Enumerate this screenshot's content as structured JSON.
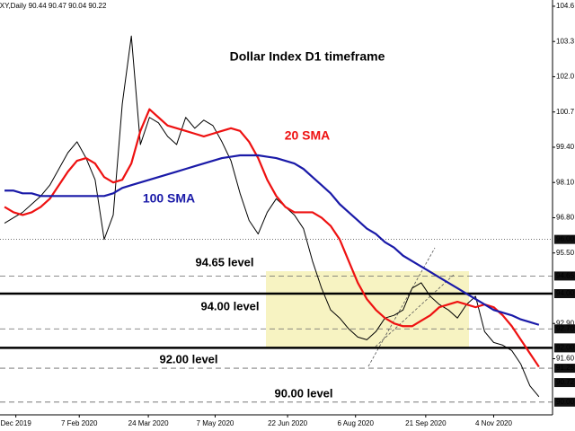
{
  "chart_data": {
    "type": "line",
    "header": "DXY,Daily  90.44 90.47 90.04 90.22",
    "title": "Dollar Index D1 timeframe",
    "x": [
      2,
      6,
      10,
      14,
      18,
      22,
      26,
      30,
      34,
      38,
      42,
      46,
      50,
      54,
      58,
      62,
      66,
      70,
      74,
      78,
      82,
      86,
      90,
      94,
      98,
      102,
      106,
      110,
      114,
      118,
      122,
      126,
      130,
      134,
      138,
      142,
      146,
      150,
      154,
      158,
      162,
      166,
      170,
      174,
      178,
      182,
      186,
      190,
      194,
      198,
      202,
      206,
      210,
      214,
      218,
      222,
      226,
      230,
      234,
      238
    ],
    "series": [
      {
        "color": "#000000",
        "values": [
          96.6,
          96.8,
          97.0,
          97.3,
          97.6,
          98.0,
          98.6,
          99.2,
          99.6,
          99.0,
          98.2,
          96.0,
          96.9,
          101.0,
          103.5,
          99.5,
          100.5,
          100.3,
          99.8,
          99.5,
          100.5,
          100.1,
          100.4,
          100.2,
          99.6,
          98.9,
          97.7,
          96.7,
          96.2,
          97.0,
          97.5,
          97.2,
          96.9,
          96.4,
          95.2,
          94.2,
          93.4,
          93.1,
          92.7,
          92.4,
          92.3,
          92.6,
          93.1,
          93.2,
          93.4,
          94.2,
          94.4,
          93.9,
          93.6,
          93.4,
          93.1,
          93.6,
          93.9,
          92.6,
          92.2,
          92.1,
          91.9,
          91.4,
          90.6,
          90.2
        ]
      },
      {
        "name": "20 SMA",
        "color": "#ee1111",
        "values": [
          97.2,
          97.0,
          96.9,
          97.0,
          97.2,
          97.5,
          98.0,
          98.5,
          98.9,
          99.0,
          98.8,
          98.3,
          98.1,
          98.2,
          98.8,
          100.0,
          100.8,
          100.5,
          100.2,
          100.1,
          100.0,
          99.9,
          99.8,
          99.9,
          100.0,
          100.1,
          100.0,
          99.6,
          99.0,
          98.2,
          97.6,
          97.2,
          97.0,
          97.0,
          97.0,
          96.8,
          96.5,
          96.0,
          95.2,
          94.4,
          93.8,
          93.4,
          93.1,
          92.9,
          92.8,
          92.8,
          93.0,
          93.2,
          93.5,
          93.6,
          93.7,
          93.6,
          93.5,
          93.6,
          93.5,
          93.2,
          92.8,
          92.3,
          91.8,
          91.3
        ]
      },
      {
        "name": "100 SMA",
        "color": "#1a1aa8",
        "values": [
          97.8,
          97.8,
          97.7,
          97.7,
          97.6,
          97.6,
          97.6,
          97.6,
          97.6,
          97.6,
          97.6,
          97.6,
          97.7,
          97.9,
          98.0,
          98.1,
          98.2,
          98.3,
          98.4,
          98.5,
          98.6,
          98.7,
          98.8,
          98.9,
          99.0,
          99.05,
          99.1,
          99.1,
          99.1,
          99.05,
          99.0,
          98.9,
          98.8,
          98.6,
          98.3,
          98.0,
          97.7,
          97.3,
          97.0,
          96.7,
          96.4,
          96.2,
          95.9,
          95.7,
          95.4,
          95.2,
          95.0,
          94.8,
          94.6,
          94.4,
          94.2,
          94.0,
          93.8,
          93.6,
          93.4,
          93.3,
          93.2,
          93.05,
          92.95,
          92.85
        ]
      }
    ],
    "xlim": [
      0,
      244
    ],
    "xticks": [
      {
        "value": 7,
        "label": "Dec 2019"
      },
      {
        "value": 35,
        "label": "7 Feb 2020"
      },
      {
        "value": 65.5,
        "label": "24 Mar 2020"
      },
      {
        "value": 95,
        "label": "7 May 2020"
      },
      {
        "value": 127,
        "label": "22 Jun 2020"
      },
      {
        "value": 157,
        "label": "6 Aug 2020"
      },
      {
        "value": 188,
        "label": "21 Sep 2020"
      },
      {
        "value": 218,
        "label": "4 Nov 2020"
      }
    ],
    "ylim": [
      89.53,
      104.83
    ],
    "yticks": [
      104.6,
      103.3,
      {
        "value": 102,
        "label": "102.0"
      },
      100.7,
      {
        "value": 99.4,
        "label": "99.40"
      },
      {
        "value": 98.1,
        "label": "98.10"
      },
      {
        "value": 96.8,
        "label": "96.80"
      },
      {
        "value": 95.5,
        "label": "95.50"
      },
      {
        "value": 92.9,
        "label": "92.90"
      },
      {
        "value": 91.6,
        "label": "91.60"
      }
    ],
    "levels": [
      {
        "value": 96,
        "label": "96.00",
        "style": "dotted"
      },
      {
        "value": 94.65,
        "label": "94.65",
        "style": "dashed"
      },
      {
        "value": 94,
        "label": "94.00",
        "style": "thick"
      },
      {
        "value": 92.7,
        "label": "92.70",
        "style": "dashed"
      },
      {
        "value": 92,
        "label": "92.00",
        "style": "thick"
      },
      {
        "value": 91.25,
        "label": "91.25",
        "style": "dashed"
      },
      {
        "value": 90.72,
        "label": "90.72",
        "style": "none"
      },
      {
        "value": 90,
        "label": "90.00",
        "style": "dashed"
      }
    ],
    "annotations": [
      "94.65 level",
      "94.00 level",
      "92.00 level",
      "90.00 level"
    ]
  }
}
